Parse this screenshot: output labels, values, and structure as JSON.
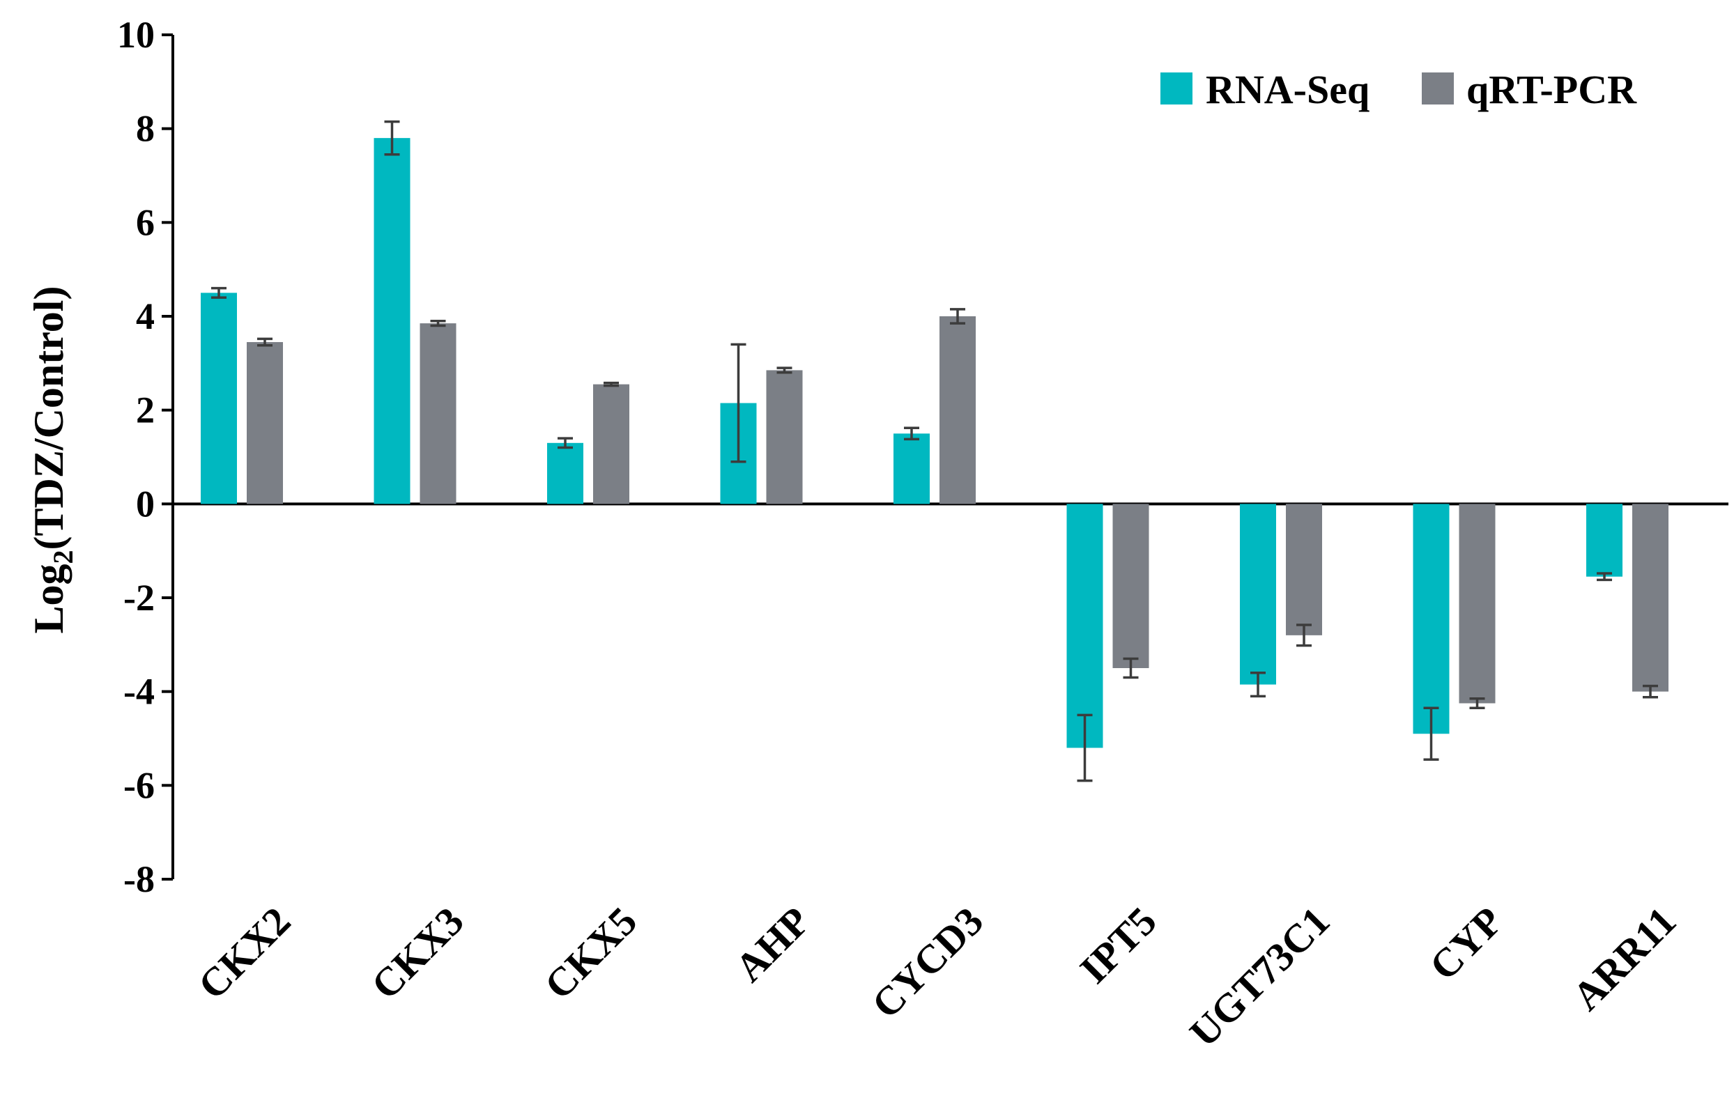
{
  "chart_data": {
    "type": "bar",
    "title": "",
    "xlabel": "",
    "ylabel": "Log2(TDZ/Control)",
    "ylabel_parts": {
      "prefix": "Log",
      "subscript": "2",
      "suffix": "(TDZ/Control)"
    },
    "ylim": [
      -8,
      10
    ],
    "yticks": [
      10,
      8,
      6,
      4,
      2,
      0,
      -2,
      -4,
      -6,
      -8
    ],
    "ytick_labels": [
      "10",
      "8",
      "6",
      "4",
      "2",
      "0",
      "-2",
      "-4",
      "-6",
      "-8"
    ],
    "grid": false,
    "legend_position": "top-right",
    "categories": [
      "CKX2",
      "CKX3",
      "CKX5",
      "AHP",
      "CYCD3",
      "IPT5",
      "UGT73C1",
      "CYP",
      "ARR11"
    ],
    "series": [
      {
        "name": "RNA-Seq",
        "color": "#00b8c0",
        "values": [
          4.5,
          7.8,
          1.3,
          2.15,
          1.5,
          -5.2,
          -3.85,
          -4.9,
          -1.55
        ],
        "errors": [
          0.1,
          0.35,
          0.1,
          1.25,
          0.12,
          0.7,
          0.25,
          0.55,
          0.07
        ]
      },
      {
        "name": "qRT-PCR",
        "color": "#7b7f86",
        "values": [
          3.45,
          3.85,
          2.55,
          2.85,
          4.0,
          -3.5,
          -2.8,
          -4.25,
          -4.0
        ],
        "errors": [
          0.07,
          0.05,
          0.03,
          0.05,
          0.15,
          0.2,
          0.22,
          0.1,
          0.12
        ]
      }
    ]
  }
}
